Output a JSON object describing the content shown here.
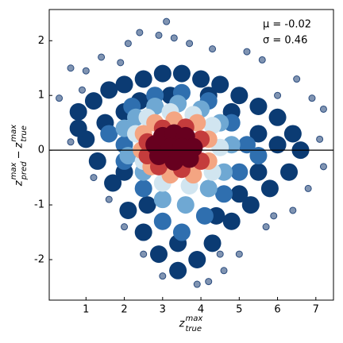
{
  "chart_data": {
    "type": "scatter",
    "xlim": [
      0.04,
      7.46
    ],
    "ylim": [
      -2.74,
      2.57
    ],
    "xticks": [
      1,
      2,
      3,
      4,
      5,
      6,
      7
    ],
    "yticks": [
      -2,
      -1,
      0,
      1,
      2
    ],
    "hline": 0,
    "xlabel": {
      "base": "z",
      "sub": "true",
      "sup": "max"
    },
    "ylabel": [
      {
        "base": "z",
        "sub": "pred",
        "sup": "max"
      },
      "−",
      {
        "base": "z",
        "sub": "true",
        "sup": "max"
      }
    ],
    "annotations": [
      "μ = -0.02",
      "σ = 0.46"
    ],
    "series": [
      {
        "color": "#0b3b73",
        "size": 11,
        "opacity": 1,
        "x": [
          0.8,
          1.2,
          1.6,
          2.0,
          2.5,
          3.0,
          3.5,
          4.0,
          4.5,
          5.0,
          5.5,
          6.0,
          6.4,
          6.6,
          6.3,
          5.8,
          5.3,
          4.8,
          4.3,
          3.9,
          3.4,
          2.9,
          2.5,
          2.1,
          1.7,
          1.3,
          1.0,
          0.8,
          1.5,
          2.0,
          5.5,
          6.0,
          5.5,
          5.0,
          4.4,
          3.4,
          2.6,
          2.0,
          4.8,
          4.2,
          3.2,
          2.4
        ],
        "values": [
          0.7,
          0.9,
          1.1,
          1.2,
          1.3,
          1.4,
          1.4,
          1.3,
          1.2,
          1.0,
          0.8,
          0.6,
          0.3,
          0.0,
          -0.4,
          -0.7,
          -1.0,
          -1.3,
          -1.7,
          -2.0,
          -2.2,
          -1.9,
          -1.5,
          -1.1,
          -0.6,
          -0.2,
          0.2,
          0.4,
          0.5,
          0.7,
          0.3,
          0.1,
          -0.4,
          -0.8,
          -1.2,
          -1.7,
          -1.0,
          -0.4,
          0.7,
          1.0,
          1.0,
          0.9
        ]
      },
      {
        "color": "#2f6faf",
        "size": 11,
        "opacity": 1,
        "x": [
          1.6,
          2.0,
          2.2,
          2.8,
          3.5,
          4.2,
          4.8,
          5.2,
          5.0,
          4.6,
          4.1,
          3.5,
          3.0,
          2.5,
          2.0,
          5.5
        ],
        "values": [
          0.3,
          0.1,
          0.8,
          1.0,
          1.05,
          0.9,
          0.5,
          0.1,
          -0.4,
          -0.8,
          -1.2,
          -1.5,
          -1.3,
          -0.7,
          -0.2,
          -0.1
        ]
      },
      {
        "color": "#6fa8d3",
        "size": 11,
        "opacity": 1,
        "x": [
          2.0,
          2.3,
          2.8,
          3.4,
          4.0,
          4.5,
          4.8,
          4.6,
          4.2,
          3.6,
          3.0,
          2.5,
          2.1
        ],
        "values": [
          0.4,
          0.6,
          0.8,
          0.85,
          0.75,
          0.5,
          0.1,
          -0.4,
          -0.7,
          -1.0,
          -0.9,
          -0.4,
          -0.1
        ]
      },
      {
        "color": "#d1e5f0",
        "size": 11,
        "opacity": 1,
        "x": [
          2.3,
          2.6,
          3.2,
          3.8,
          4.3,
          4.5,
          4.3,
          3.7,
          3.0,
          2.5
        ],
        "values": [
          0.3,
          0.6,
          0.7,
          0.65,
          0.45,
          0.05,
          -0.4,
          -0.65,
          -0.6,
          -0.2
        ]
      },
      {
        "color": "#f4a582",
        "size": 11,
        "opacity": 1,
        "x": [
          2.5,
          2.8,
          3.3,
          3.9,
          4.2,
          4.2,
          3.8,
          3.2,
          2.7,
          2.45
        ],
        "values": [
          0.3,
          0.5,
          0.55,
          0.5,
          0.2,
          -0.2,
          -0.45,
          -0.45,
          -0.3,
          0.0
        ]
      },
      {
        "color": "#c43c3c",
        "size": 11,
        "opacity": 1,
        "x": [
          2.6,
          3.0,
          3.6,
          4.0,
          4.0,
          3.5,
          2.9,
          2.6
        ],
        "values": [
          0.15,
          0.4,
          0.42,
          0.2,
          -0.2,
          -0.35,
          -0.3,
          -0.1
        ]
      },
      {
        "color": "#67001f",
        "size": 12,
        "opacity": 1,
        "x": [
          2.8,
          3.0,
          3.3,
          3.6,
          3.8,
          3.7,
          3.3,
          2.9,
          3.2,
          3.5
        ],
        "values": [
          0.1,
          0.25,
          0.3,
          0.25,
          0.05,
          -0.15,
          -0.2,
          -0.1,
          0.05,
          0.05
        ]
      },
      {
        "color": "#2b4c7e",
        "size": 4,
        "opacity": 0.6,
        "x": [
          0.3,
          0.6,
          1.0,
          1.4,
          2.1,
          2.4,
          2.9,
          3.1,
          3.3,
          3.7,
          4.3,
          5.2,
          5.6,
          6.5,
          6.9,
          7.2,
          7.1,
          7.2,
          6.8,
          6.4,
          5.7,
          5.0,
          4.6,
          4.2,
          3.9,
          3.0,
          2.5,
          1.6,
          1.2,
          0.6,
          0.9,
          6.0,
          5.9,
          4.5,
          2.0,
          1.9
        ],
        "values": [
          0.95,
          1.5,
          1.45,
          1.7,
          1.95,
          2.15,
          2.1,
          2.35,
          2.05,
          1.95,
          1.85,
          1.8,
          1.65,
          1.3,
          0.95,
          0.75,
          0.2,
          -0.3,
          -0.7,
          -1.1,
          -1.4,
          -1.9,
          -2.2,
          -2.4,
          -2.45,
          -2.3,
          -1.9,
          -0.9,
          -0.5,
          0.15,
          1.1,
          1.0,
          -1.2,
          -1.9,
          -1.4,
          1.6
        ]
      }
    ]
  }
}
